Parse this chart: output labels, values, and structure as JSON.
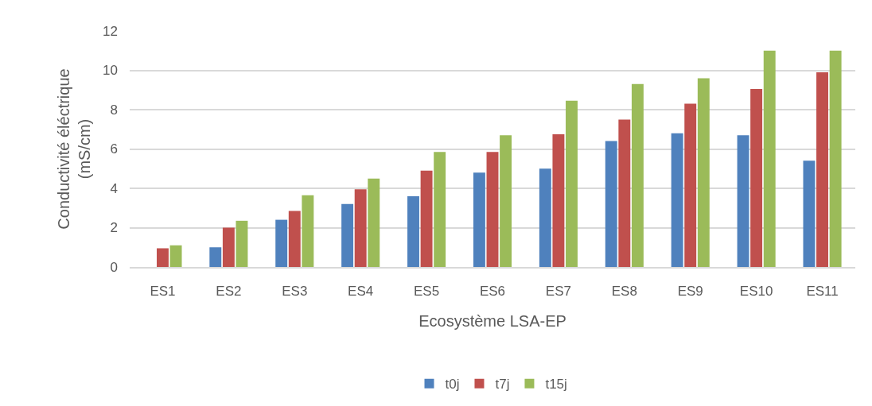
{
  "chart_data": {
    "type": "bar",
    "xlabel": "Ecosystème LSA-EP",
    "ylabel": "Conductivité éléctrique\n(mS/cm)",
    "categories": [
      "ES1",
      "ES2",
      "ES3",
      "ES4",
      "ES5",
      "ES6",
      "ES7",
      "ES8",
      "ES9",
      "ES10",
      "ES11"
    ],
    "series": [
      {
        "name": "t0j",
        "color": "#4f81bd",
        "values": [
          null,
          1.0,
          2.4,
          3.2,
          3.6,
          4.8,
          5.0,
          6.4,
          6.8,
          6.7,
          5.4
        ]
      },
      {
        "name": "t7j",
        "color": "#c0504d",
        "values": [
          0.95,
          2.0,
          2.85,
          3.95,
          4.9,
          5.85,
          6.75,
          7.5,
          8.3,
          9.05,
          9.9
        ]
      },
      {
        "name": "t15j",
        "color": "#9bbb59",
        "values": [
          1.1,
          2.35,
          3.65,
          4.5,
          5.85,
          6.7,
          8.45,
          9.3,
          9.6,
          11.0,
          11.0
        ]
      }
    ],
    "ylim": [
      0,
      12
    ],
    "yticks": [
      0,
      2,
      4,
      6,
      8,
      10,
      12
    ],
    "grid": "y",
    "legend": "bottom"
  }
}
